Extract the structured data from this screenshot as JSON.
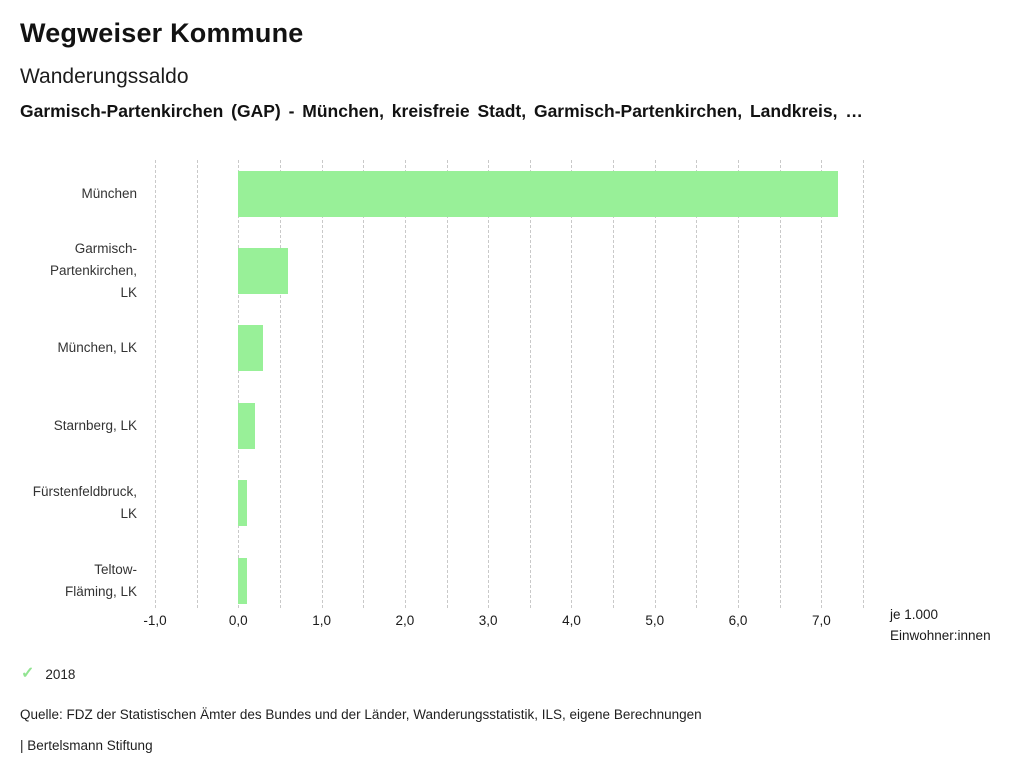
{
  "header": {
    "title": "Wegweiser Kommune",
    "subtitle": "Wanderungssaldo",
    "description": "Garmisch-Partenkirchen (GAP) - München, kreisfreie Stadt, Garmisch-Partenkirchen, Landkreis, …"
  },
  "chart_data": {
    "type": "bar",
    "orientation": "horizontal",
    "title": "Wanderungssaldo",
    "categories": [
      "München",
      "Garmisch-Partenkirchen, LK",
      "München, LK",
      "Starnberg, LK",
      "Fürstenfeldbruck, LK",
      "Teltow-Fläming, LK"
    ],
    "category_lines": [
      [
        "München"
      ],
      [
        "Garmisch-",
        "Partenkirchen,",
        "LK"
      ],
      [
        "München, LK"
      ],
      [
        "Starnberg, LK"
      ],
      [
        "Fürstenfeldbruck,",
        "LK"
      ],
      [
        "Teltow-",
        "Fläming, LK"
      ]
    ],
    "series": [
      {
        "name": "2018",
        "values": [
          7.2,
          0.6,
          0.3,
          0.2,
          0.1,
          0.1
        ]
      }
    ],
    "xlim": [
      -1.0,
      7.5
    ],
    "x_major_ticks": [
      -1.0,
      0.0,
      1.0,
      2.0,
      3.0,
      4.0,
      5.0,
      6.0,
      7.0
    ],
    "x_tick_labels": [
      "-1,0",
      "0,0",
      "1,0",
      "2,0",
      "3,0",
      "4,0",
      "5,0",
      "6,0",
      "7,0"
    ],
    "gridline_step": 0.5,
    "grid": "vertical-dashed",
    "bar_baseline": 0,
    "unit_label": [
      "je 1.000",
      "Einwohner:innen"
    ],
    "bar_color": "#98f098",
    "gridline_color": "#c9c9c9",
    "legend_position": "bottom-left"
  },
  "legend": {
    "check_icon": "✓",
    "check_color": "#92e492",
    "label": "2018"
  },
  "footer": {
    "source": "Quelle: FDZ der Statistischen Ämter des Bundes und der Länder, Wanderungsstatistik, ILS, eigene Berechnungen",
    "attribution": "| Bertelsmann Stiftung"
  }
}
